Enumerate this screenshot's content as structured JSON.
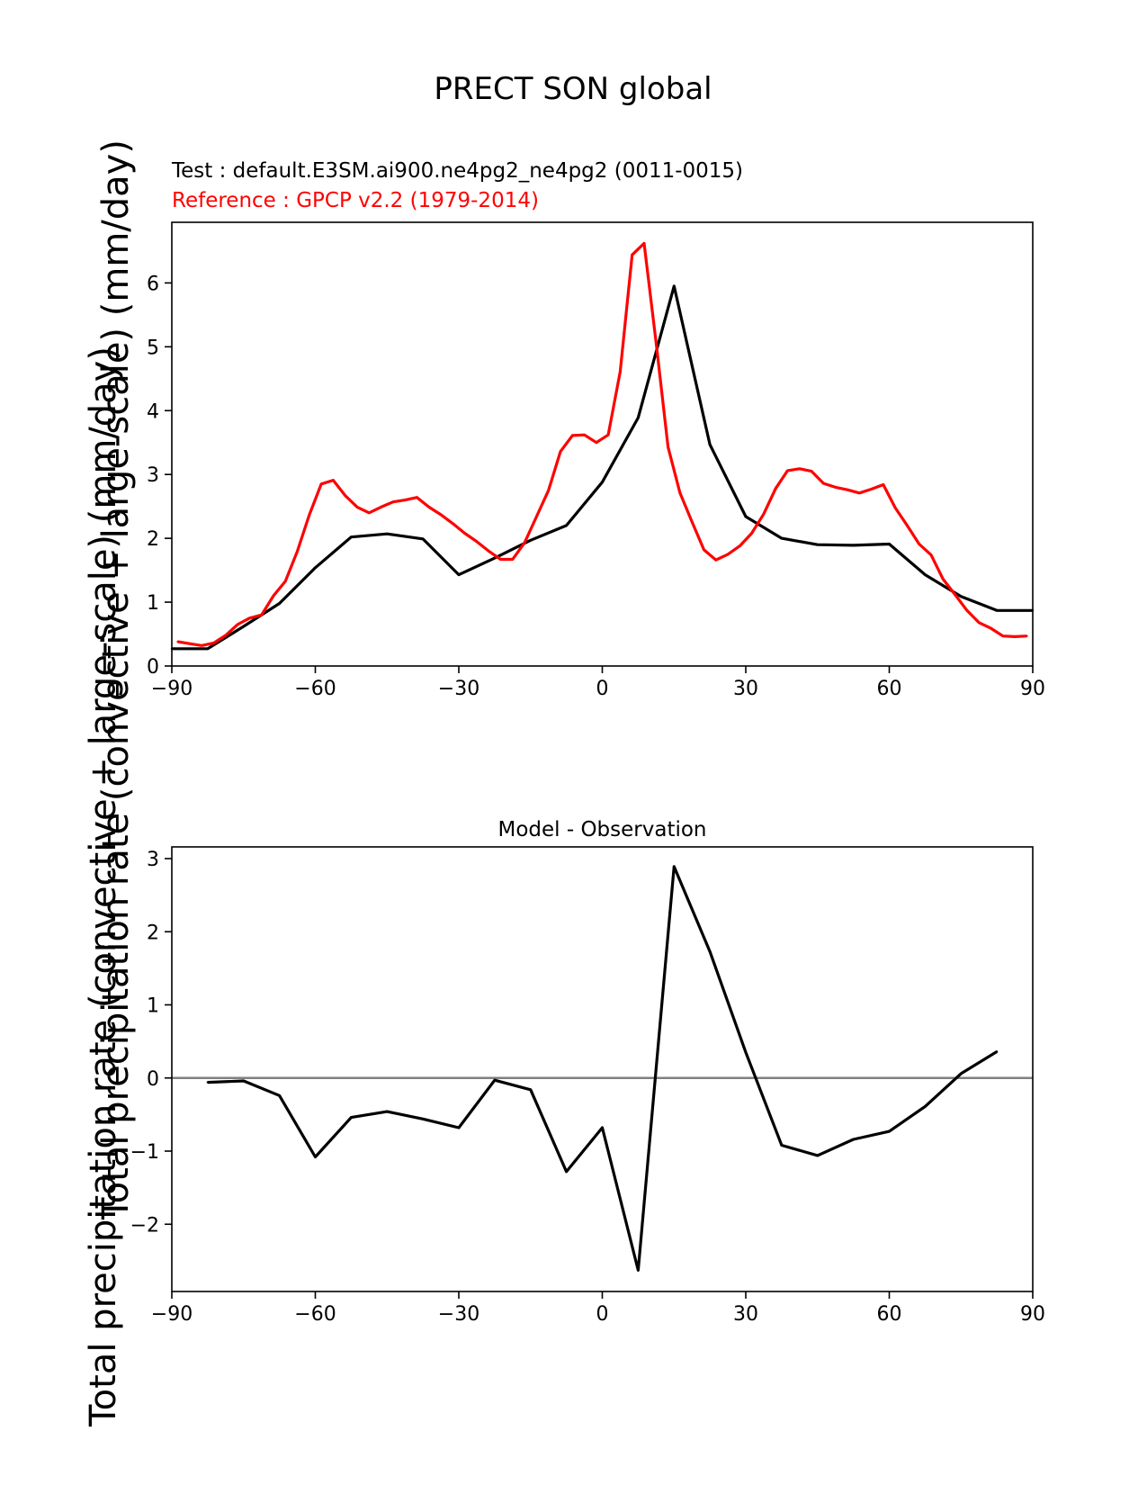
{
  "figure": {
    "suptitle": "PRECT SON global",
    "test_label": "Test : default.E3SM.ai900.ne4pg2_ne4pg2 (0011-0015)",
    "reference_label": "Reference : GPCP v2.2 (1979-2014)",
    "ylabel_large": "Total precipitation rate (convective + large-scale) (mm/day)",
    "ylabel_small": "Total precipitation rate (convective + large-scale) (mm/day)",
    "colors": {
      "test": "#000000",
      "reference": "#ff0000",
      "zero_line": "#808080"
    }
  },
  "chart_data": [
    {
      "type": "line",
      "title": "",
      "xlim": [
        -90,
        90
      ],
      "ylim": [
        0,
        6.95
      ],
      "xticks": [
        "−90",
        "−60",
        "−30",
        "0",
        "30",
        "60",
        "90"
      ],
      "yticks": [
        "0",
        "1",
        "2",
        "3",
        "4",
        "5",
        "6"
      ],
      "series": [
        {
          "key": "test",
          "x": [
            -90,
            -82.5,
            -75,
            -67.5,
            -60,
            -52.5,
            -45,
            -37.5,
            -30,
            -22.5,
            -15,
            -7.5,
            0,
            7.5,
            15,
            22.5,
            30,
            37.5,
            45,
            52.5,
            60,
            67.5,
            75,
            82.5,
            90
          ],
          "values": [
            0.27,
            0.27,
            0.62,
            0.98,
            1.54,
            2.02,
            2.07,
            1.99,
            1.43,
            1.69,
            1.97,
            2.2,
            2.88,
            3.89,
            5.95,
            3.47,
            2.34,
            2.0,
            1.9,
            1.89,
            1.91,
            1.43,
            1.09,
            0.87,
            0.87
          ]
        },
        {
          "key": "reference",
          "x": [
            -88.75,
            -86.25,
            -83.75,
            -81.25,
            -78.75,
            -76.25,
            -73.75,
            -71.25,
            -68.75,
            -66.25,
            -63.75,
            -61.25,
            -58.75,
            -56.25,
            -53.75,
            -51.25,
            -48.75,
            -46.25,
            -43.75,
            -41.25,
            -38.75,
            -36.25,
            -33.75,
            -31.25,
            -28.75,
            -26.25,
            -23.75,
            -21.25,
            -18.75,
            -16.25,
            -13.75,
            -11.25,
            -8.75,
            -6.25,
            -3.75,
            -1.25,
            1.25,
            3.75,
            6.25,
            8.75,
            11.25,
            13.75,
            16.25,
            18.75,
            21.25,
            23.75,
            26.25,
            28.75,
            31.25,
            33.75,
            36.25,
            38.75,
            41.25,
            43.75,
            46.25,
            48.75,
            51.25,
            53.75,
            56.25,
            58.75,
            61.25,
            63.75,
            66.25,
            68.75,
            71.25,
            73.75,
            76.25,
            78.75,
            81.25,
            83.75,
            86.25,
            88.75
          ],
          "values": [
            0.38,
            0.35,
            0.32,
            0.36,
            0.48,
            0.65,
            0.75,
            0.8,
            1.1,
            1.33,
            1.8,
            2.37,
            2.85,
            2.91,
            2.67,
            2.49,
            2.4,
            2.49,
            2.57,
            2.6,
            2.64,
            2.49,
            2.37,
            2.23,
            2.08,
            1.95,
            1.8,
            1.67,
            1.67,
            1.93,
            2.34,
            2.75,
            3.36,
            3.61,
            3.62,
            3.5,
            3.62,
            4.61,
            6.44,
            6.62,
            5.07,
            3.43,
            2.71,
            2.26,
            1.82,
            1.66,
            1.75,
            1.88,
            2.08,
            2.38,
            2.78,
            3.06,
            3.09,
            3.05,
            2.86,
            2.8,
            2.76,
            2.71,
            2.77,
            2.84,
            2.48,
            2.2,
            1.91,
            1.74,
            1.36,
            1.12,
            0.87,
            0.68,
            0.59,
            0.47,
            0.46,
            0.47
          ]
        }
      ]
    },
    {
      "type": "line",
      "title": "Model - Observation",
      "xlim": [
        -90,
        90
      ],
      "ylim": [
        -2.92,
        3.16
      ],
      "xticks": [
        "−90",
        "−60",
        "−30",
        "0",
        "30",
        "60",
        "90"
      ],
      "yticks": [
        "−2",
        "−1",
        "0",
        "1",
        "2",
        "3"
      ],
      "reference_line": 0,
      "series": [
        {
          "key": "test",
          "x": [
            -82.5,
            -75,
            -67.5,
            -60,
            -52.5,
            -45,
            -37.5,
            -30,
            -22.5,
            -15,
            -7.5,
            0,
            7.5,
            15,
            22.5,
            30,
            37.5,
            45,
            52.5,
            60,
            67.5,
            75,
            82.5
          ],
          "values": [
            -0.06,
            -0.04,
            -0.24,
            -1.08,
            -0.54,
            -0.46,
            -0.56,
            -0.68,
            -0.03,
            -0.16,
            -1.28,
            -0.68,
            -2.63,
            2.89,
            1.73,
            0.35,
            -0.92,
            -1.06,
            -0.84,
            -0.73,
            -0.39,
            0.06,
            0.36
          ]
        }
      ]
    }
  ]
}
